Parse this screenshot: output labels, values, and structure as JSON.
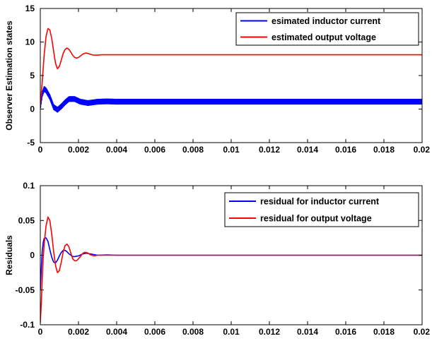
{
  "chart_data": [
    {
      "type": "line",
      "title": "",
      "xlabel": "",
      "ylabel": "Observer Estimation states",
      "xlim": [
        0,
        0.02
      ],
      "ylim": [
        -5,
        15
      ],
      "x_ticks": [
        0,
        0.002,
        0.004,
        0.006,
        0.008,
        0.01,
        0.012,
        0.014,
        0.016,
        0.018,
        0.02
      ],
      "x_tick_labels": [
        "0",
        "0.002",
        "0.004",
        "0.006",
        "0.008",
        "0.01",
        "0.012",
        "0.014",
        "0.016",
        "0.018",
        "0.02"
      ],
      "y_ticks": [
        -5,
        0,
        5,
        10,
        15
      ],
      "y_tick_labels": [
        "-5",
        "0",
        "5",
        "10",
        "15"
      ],
      "grid": false,
      "legend_position": "top-right",
      "series": [
        {
          "name": "esimated inductor current",
          "color": "#0000ff",
          "ripple_amplitude": 0.35,
          "x": [
            0,
            0.0001,
            0.0002,
            0.0003,
            0.0005,
            0.0007,
            0.0009,
            0.0011,
            0.0013,
            0.0015,
            0.0018,
            0.0021,
            0.0025,
            0.003,
            0.0035,
            0.004,
            0.0045,
            0.02
          ],
          "y": [
            0.3,
            2.2,
            3.0,
            2.8,
            1.8,
            0.3,
            -0.1,
            0.4,
            1.0,
            1.5,
            1.5,
            1.1,
            0.9,
            1.1,
            1.15,
            1.1,
            1.1,
            1.1
          ]
        },
        {
          "name": "estimated output voltage",
          "color": "#ff0000",
          "x": [
            0,
            0.0001,
            0.0002,
            0.0003,
            0.0004,
            0.0005,
            0.0006,
            0.0007,
            0.0008,
            0.0009,
            0.001,
            0.0011,
            0.0012,
            0.0013,
            0.0014,
            0.0015,
            0.0016,
            0.0017,
            0.0018,
            0.0019,
            0.002,
            0.0021,
            0.0022,
            0.0023,
            0.0024,
            0.0025,
            0.0026,
            0.0027,
            0.0028,
            0.003,
            0.0032,
            0.0035,
            0.004,
            0.0045,
            0.02
          ],
          "y": [
            0.5,
            4.0,
            8.0,
            10.8,
            12.0,
            11.8,
            10.5,
            8.6,
            6.8,
            6.0,
            6.4,
            7.3,
            8.3,
            8.9,
            9.1,
            8.9,
            8.5,
            8.0,
            7.7,
            7.6,
            7.7,
            7.9,
            8.15,
            8.3,
            8.35,
            8.3,
            8.2,
            8.1,
            8.05,
            8.05,
            8.1,
            8.1,
            8.1,
            8.1,
            8.1
          ]
        }
      ]
    },
    {
      "type": "line",
      "title": "",
      "xlabel": "",
      "ylabel": "Residuals",
      "xlim": [
        0,
        0.02
      ],
      "ylim": [
        -0.1,
        0.1
      ],
      "x_ticks": [
        0,
        0.002,
        0.004,
        0.006,
        0.008,
        0.01,
        0.012,
        0.014,
        0.016,
        0.018,
        0.02
      ],
      "x_tick_labels": [
        "0",
        "0.002",
        "0.004",
        "0.006",
        "0.008",
        "0.01",
        "0.012",
        "0.014",
        "0.016",
        "0.018",
        "0.02"
      ],
      "y_ticks": [
        -0.1,
        -0.05,
        0,
        0.05,
        0.1
      ],
      "y_tick_labels": [
        "-0.1",
        "-0.05",
        "0",
        "0.05",
        "0.1"
      ],
      "grid": false,
      "legend_position": "top-right",
      "series": [
        {
          "name": "residual for inductor current",
          "color": "#0000ff",
          "x": [
            0,
            5e-05,
            0.0001,
            0.00015,
            0.0002,
            0.0003,
            0.0004,
            0.0005,
            0.0006,
            0.0007,
            0.0008,
            0.0009,
            0.001,
            0.0011,
            0.0012,
            0.0013,
            0.0014,
            0.0015,
            0.0016,
            0.0017,
            0.0018,
            0.002,
            0.0022,
            0.0024,
            0.0026,
            0.0028,
            0.003,
            0.0035,
            0.004,
            0.02
          ],
          "y": [
            -0.05,
            -0.02,
            0.005,
            0.018,
            0.024,
            0.025,
            0.02,
            0.008,
            -0.003,
            -0.01,
            -0.011,
            -0.007,
            -0.001,
            0.004,
            0.007,
            0.007,
            0.005,
            0.002,
            0.0,
            -0.002,
            -0.002,
            -0.001,
            0.0015,
            0.003,
            0.002,
            0.001,
            0.0,
            0.0005,
            0.0,
            0.0
          ]
        },
        {
          "name": "residual for output voltage",
          "color": "#ff0000",
          "x": [
            0,
            5e-05,
            0.0001,
            0.00015,
            0.0002,
            0.0003,
            0.0004,
            0.0005,
            0.0006,
            0.0007,
            0.0008,
            0.0009,
            0.001,
            0.0011,
            0.0012,
            0.0013,
            0.0014,
            0.0015,
            0.0016,
            0.0017,
            0.0018,
            0.0019,
            0.002,
            0.0021,
            0.0022,
            0.0023,
            0.0024,
            0.0025,
            0.0026,
            0.0028,
            0.003,
            0.0033,
            0.0036,
            0.004,
            0.02
          ],
          "y": [
            -0.097,
            -0.07,
            -0.035,
            -0.005,
            0.015,
            0.042,
            0.055,
            0.05,
            0.03,
            0.005,
            -0.015,
            -0.025,
            -0.022,
            -0.01,
            0.005,
            0.014,
            0.016,
            0.012,
            0.003,
            -0.005,
            -0.008,
            -0.008,
            -0.005,
            -0.002,
            0.002,
            0.004,
            0.004,
            0.003,
            0.001,
            -0.001,
            0.0,
            0.0,
            0.0,
            0.0,
            0.0
          ]
        }
      ]
    }
  ]
}
